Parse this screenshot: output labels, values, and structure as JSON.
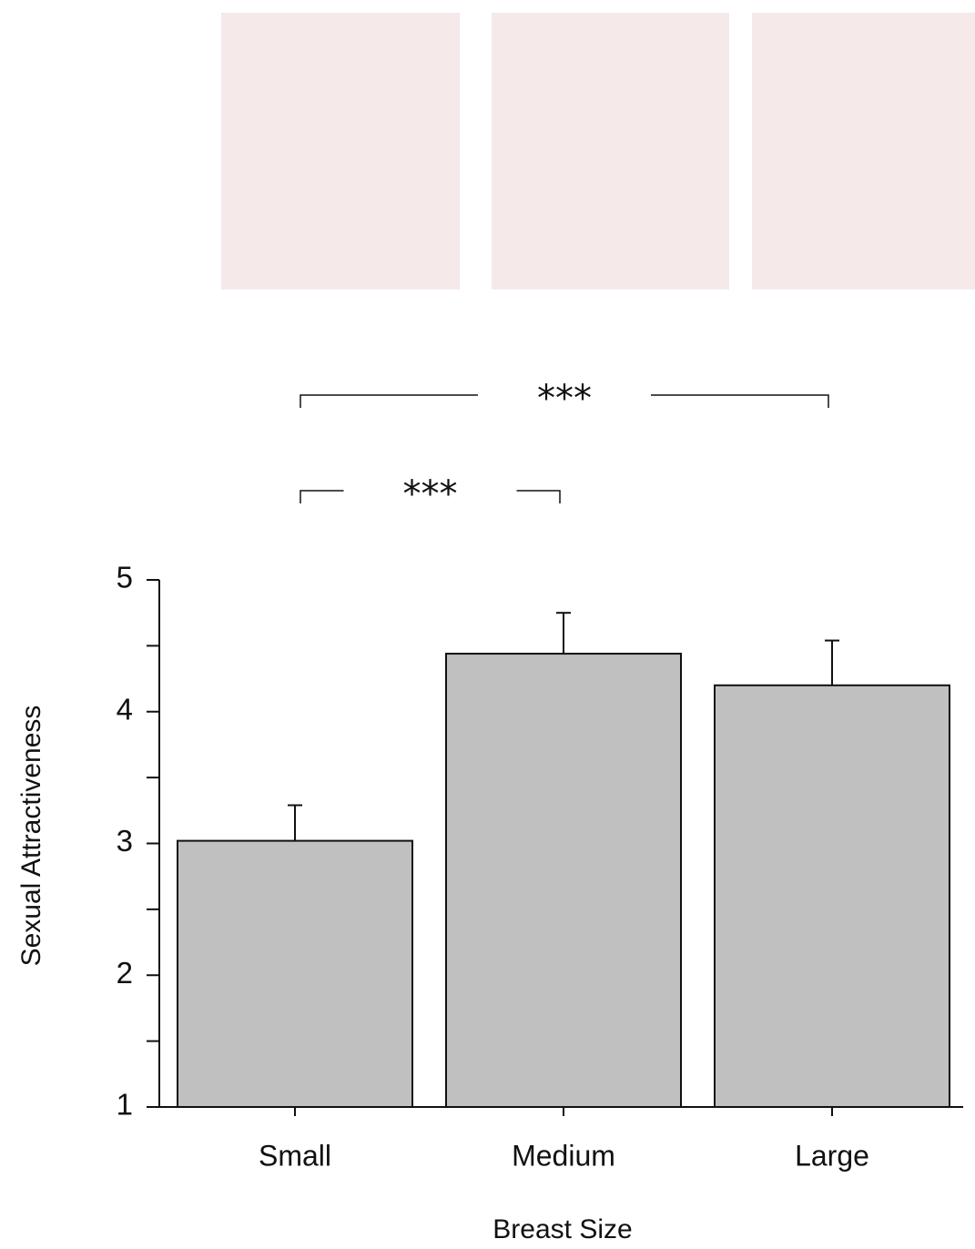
{
  "chart_data": {
    "type": "bar",
    "categories": [
      "Small",
      "Medium",
      "Large"
    ],
    "values": [
      3.02,
      4.44,
      4.2
    ],
    "errors": [
      0.27,
      0.31,
      0.34
    ],
    "color": "#c0c0c0",
    "ylabel": "Sexual Attractiveness",
    "xlabel": "Breast Size",
    "ylim": [
      1,
      5
    ],
    "yticks": [
      1,
      2,
      3,
      4,
      5
    ],
    "yminor_ticks": [
      1.5,
      2.5,
      3.5,
      4.5
    ],
    "significance": [
      {
        "label": "***",
        "between": [
          "Small",
          "Large"
        ]
      },
      {
        "label": "***",
        "between": [
          "Small",
          "Medium"
        ]
      }
    ]
  }
}
